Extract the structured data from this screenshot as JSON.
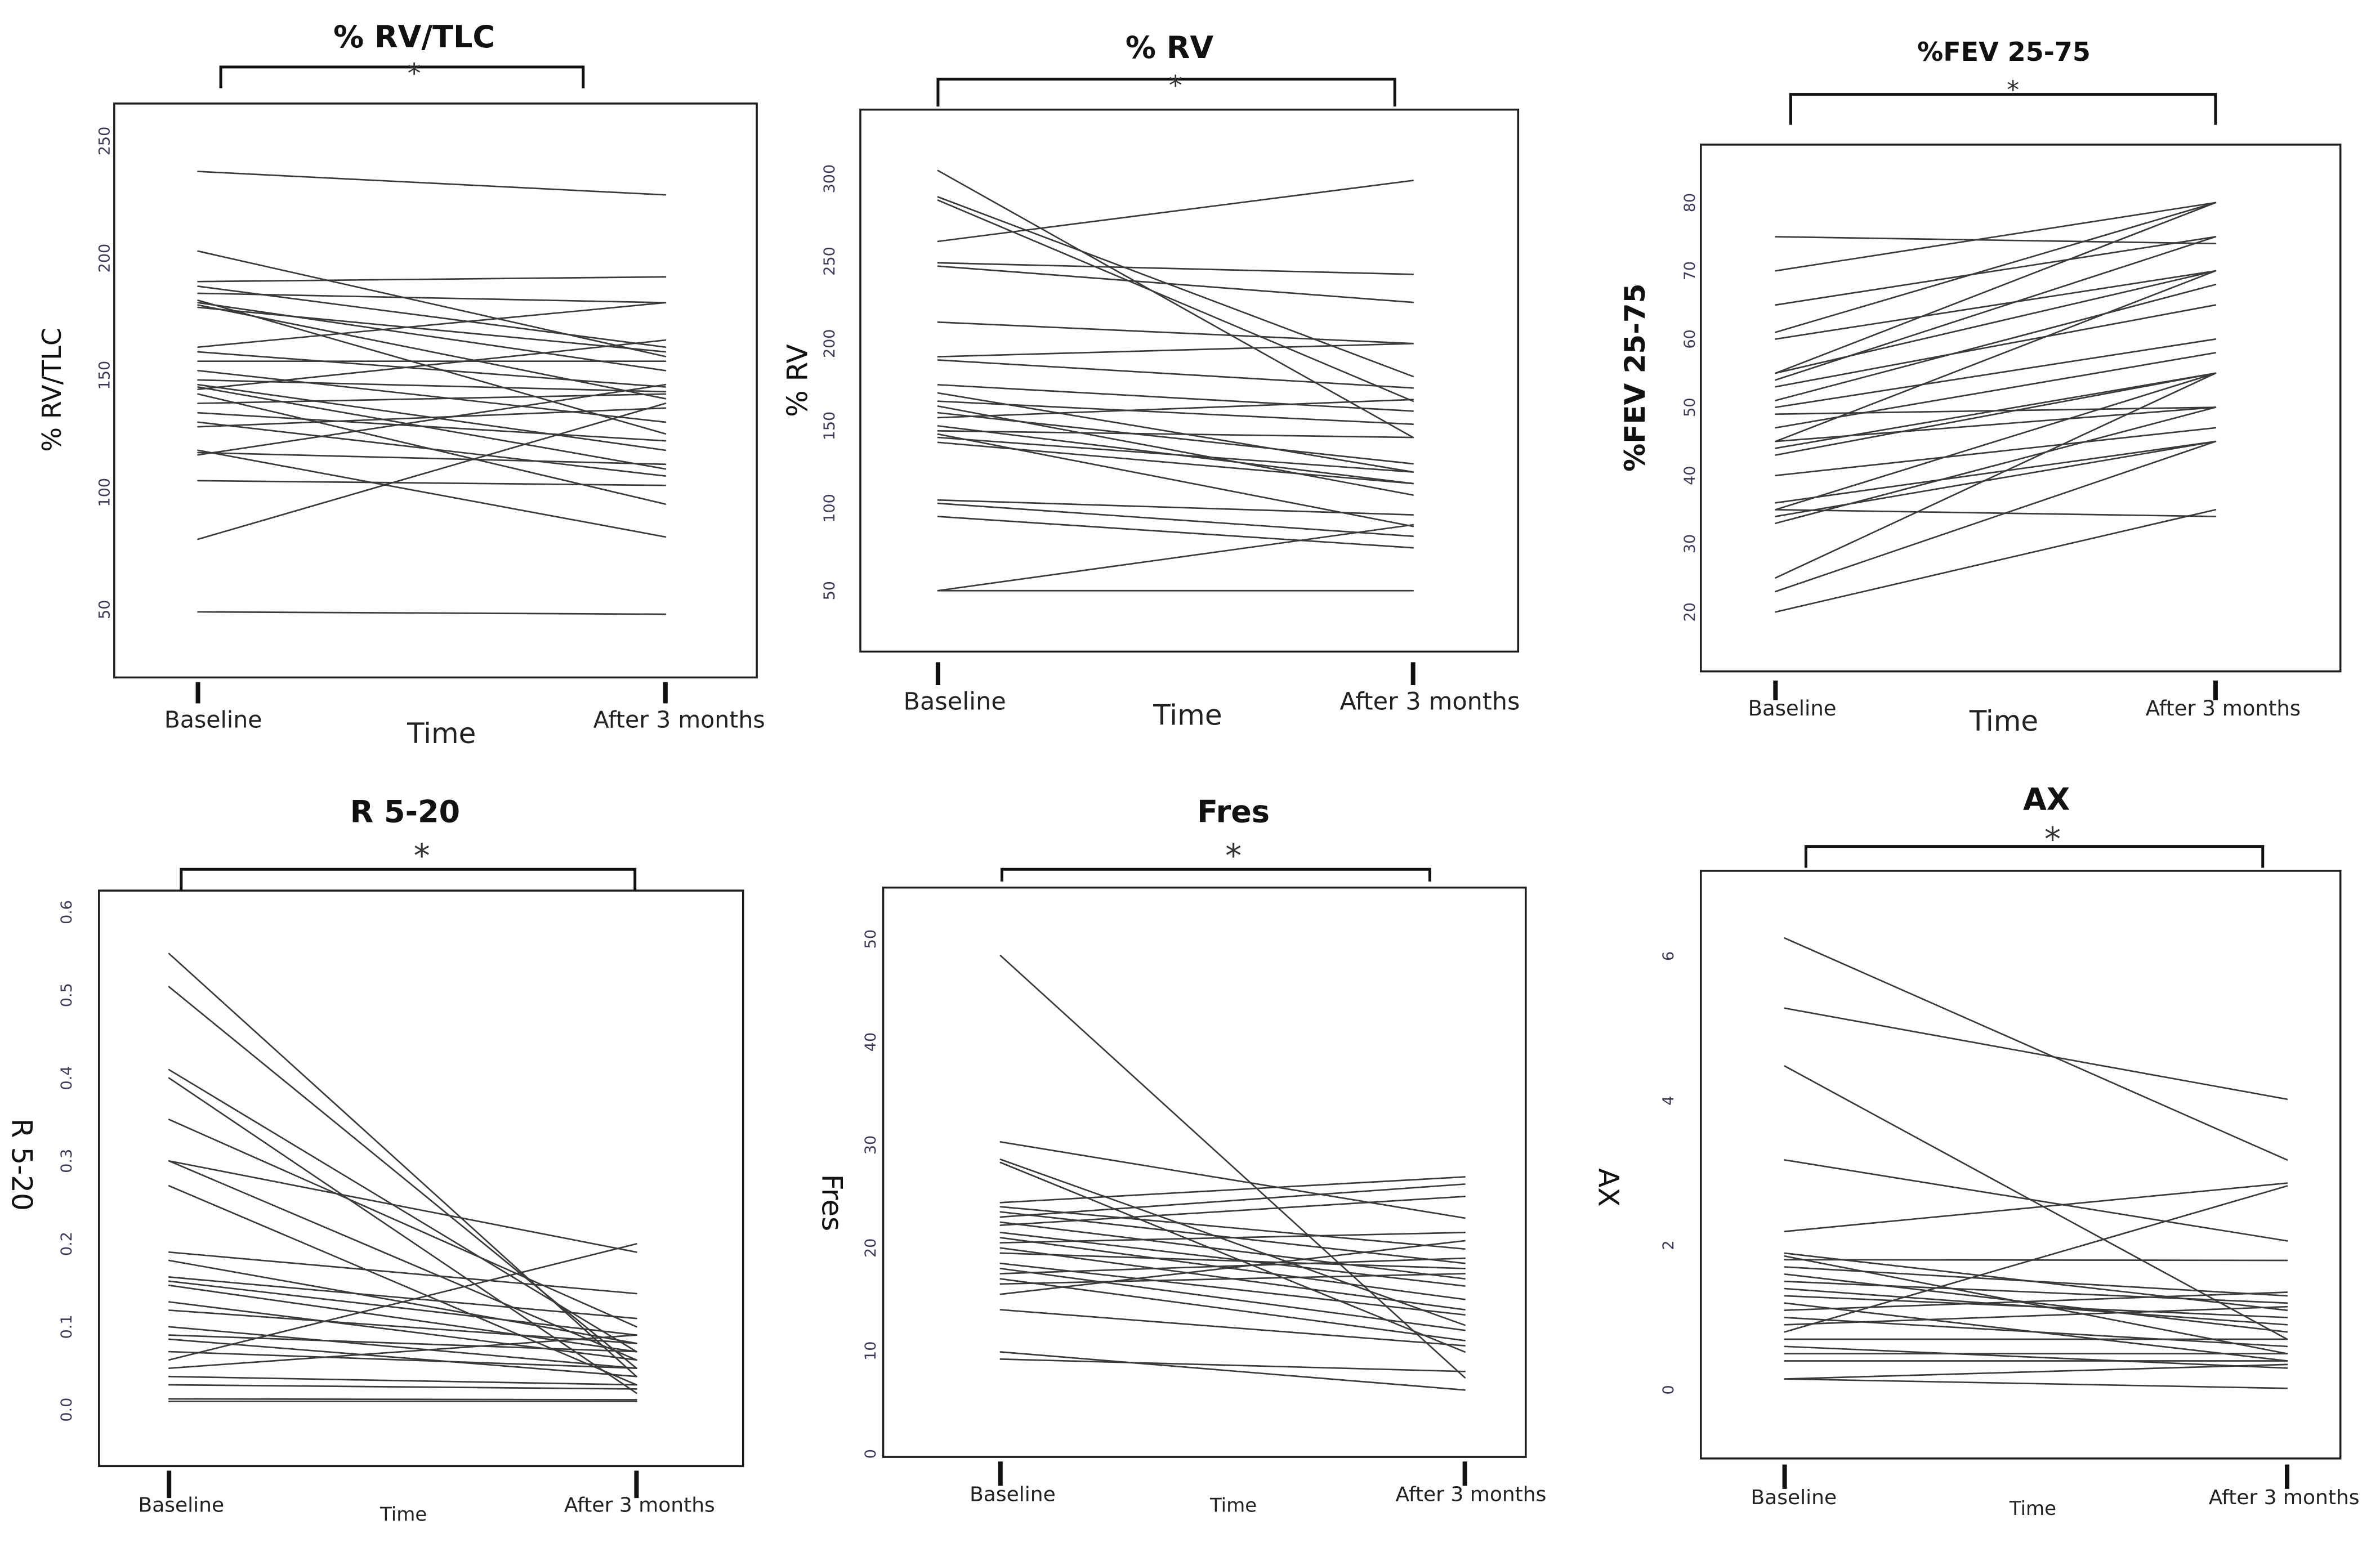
{
  "chart_data": [
    {
      "type": "line",
      "title": "% RV/TLC",
      "xlabel": "Time",
      "ylabel": "% RV/TLC",
      "categories": [
        "Baseline",
        "After 3 months"
      ],
      "yticks": [
        "50",
        "100",
        "150",
        "200",
        "250"
      ],
      "ylim": [
        21,
        266
      ],
      "significance": "*",
      "series": [
        {
          "values": [
            237,
            227
          ]
        },
        {
          "values": [
            203,
            158
          ]
        },
        {
          "values": [
            190,
            192
          ]
        },
        {
          "values": [
            188,
            162
          ]
        },
        {
          "values": [
            185,
            181
          ]
        },
        {
          "values": [
            182,
            125
          ]
        },
        {
          "values": [
            181,
            152
          ]
        },
        {
          "values": [
            180,
            140
          ]
        },
        {
          "values": [
            179,
            160
          ]
        },
        {
          "values": [
            162,
            181
          ]
        },
        {
          "values": [
            160,
            145
          ]
        },
        {
          "values": [
            156,
            156
          ]
        },
        {
          "values": [
            152,
            130
          ]
        },
        {
          "values": [
            148,
            143
          ]
        },
        {
          "values": [
            146,
            118
          ]
        },
        {
          "values": [
            145,
            110
          ]
        },
        {
          "values": [
            144,
            165
          ]
        },
        {
          "values": [
            142,
            95
          ]
        },
        {
          "values": [
            138,
            142
          ]
        },
        {
          "values": [
            134,
            122
          ]
        },
        {
          "values": [
            130,
            107
          ]
        },
        {
          "values": [
            128,
            136
          ]
        },
        {
          "values": [
            118,
            81
          ]
        },
        {
          "values": [
            117,
            112
          ]
        },
        {
          "values": [
            116,
            146
          ]
        },
        {
          "values": [
            105,
            103
          ]
        },
        {
          "values": [
            80,
            138
          ]
        },
        {
          "values": [
            49,
            48
          ]
        }
      ]
    },
    {
      "type": "line",
      "title": "% RV",
      "xlabel": "Time",
      "ylabel": "% RV",
      "categories": [
        "Baseline",
        "After 3 months"
      ],
      "yticks": [
        "50",
        "100",
        "150",
        "200",
        "250",
        "300"
      ],
      "ylim": [
        13,
        342
      ],
      "significance": "*",
      "series": [
        {
          "values": [
            305,
            143
          ]
        },
        {
          "values": [
            289,
            180
          ]
        },
        {
          "values": [
            287,
            165
          ]
        },
        {
          "values": [
            262,
            299
          ]
        },
        {
          "values": [
            249,
            242
          ]
        },
        {
          "values": [
            247,
            225
          ]
        },
        {
          "values": [
            213,
            200
          ]
        },
        {
          "values": [
            192,
            200
          ]
        },
        {
          "values": [
            190,
            173
          ]
        },
        {
          "values": [
            175,
            159
          ]
        },
        {
          "values": [
            170,
            122
          ]
        },
        {
          "values": [
            165,
            151
          ]
        },
        {
          "values": [
            162,
            108
          ]
        },
        {
          "values": [
            158,
            127
          ]
        },
        {
          "values": [
            155,
            166
          ]
        },
        {
          "values": [
            150,
            115
          ]
        },
        {
          "values": [
            147,
            143
          ]
        },
        {
          "values": [
            145,
            89
          ]
        },
        {
          "values": [
            143,
            122
          ]
        },
        {
          "values": [
            140,
            115
          ]
        },
        {
          "values": [
            105,
            96
          ]
        },
        {
          "values": [
            103,
            83
          ]
        },
        {
          "values": [
            95,
            76
          ]
        },
        {
          "values": [
            50,
            90
          ]
        },
        {
          "values": [
            50,
            50
          ]
        }
      ]
    },
    {
      "type": "line",
      "title": "%FEV 25-75",
      "xlabel": "Time",
      "ylabel": "%FEV 25-75",
      "categories": [
        "Baseline",
        "After 3 months"
      ],
      "yticks": [
        "20",
        "30",
        "40",
        "50",
        "60",
        "70",
        "80"
      ],
      "ylim": [
        11.3,
        88.5
      ],
      "significance": "*",
      "series": [
        {
          "values": [
            75,
            74
          ]
        },
        {
          "values": [
            70,
            80
          ]
        },
        {
          "values": [
            65,
            75
          ]
        },
        {
          "values": [
            61,
            80
          ]
        },
        {
          "values": [
            60,
            70
          ]
        },
        {
          "values": [
            55,
            80
          ]
        },
        {
          "values": [
            55,
            70
          ]
        },
        {
          "values": [
            54,
            75
          ]
        },
        {
          "values": [
            53,
            65
          ]
        },
        {
          "values": [
            51,
            68
          ]
        },
        {
          "values": [
            50,
            60
          ]
        },
        {
          "values": [
            49,
            50
          ]
        },
        {
          "values": [
            47,
            58
          ]
        },
        {
          "values": [
            45,
            50
          ]
        },
        {
          "values": [
            45,
            70
          ]
        },
        {
          "values": [
            44,
            55
          ]
        },
        {
          "values": [
            43,
            55
          ]
        },
        {
          "values": [
            40,
            47
          ]
        },
        {
          "values": [
            36,
            45
          ]
        },
        {
          "values": [
            35,
            55
          ]
        },
        {
          "values": [
            35,
            34
          ]
        },
        {
          "values": [
            34,
            45
          ]
        },
        {
          "values": [
            33,
            50
          ]
        },
        {
          "values": [
            25,
            55
          ]
        },
        {
          "values": [
            23,
            45
          ]
        },
        {
          "values": [
            20,
            35
          ]
        }
      ]
    },
    {
      "type": "line",
      "title": "R 5-20",
      "xlabel": "Time",
      "ylabel": "R 5-20",
      "categories": [
        "Baseline",
        "After 3 months"
      ],
      "yticks": [
        "0.0",
        "0.1",
        "0.2",
        "0.3",
        "0.4",
        "0.5",
        "0.6"
      ],
      "ylim": [
        -0.068,
        0.626
      ],
      "significance": "*",
      "series": [
        {
          "values": [
            0.55,
            0.04
          ]
        },
        {
          "values": [
            0.51,
            0.05
          ]
        },
        {
          "values": [
            0.41,
            0.07
          ]
        },
        {
          "values": [
            0.4,
            0.02
          ]
        },
        {
          "values": [
            0.35,
            0.1
          ]
        },
        {
          "values": [
            0.3,
            0.19
          ]
        },
        {
          "values": [
            0.3,
            0.06
          ]
        },
        {
          "values": [
            0.27,
            0.03
          ]
        },
        {
          "values": [
            0.19,
            0.14
          ]
        },
        {
          "values": [
            0.18,
            0.08
          ]
        },
        {
          "values": [
            0.16,
            0.11
          ]
        },
        {
          "values": [
            0.155,
            0.09
          ]
        },
        {
          "values": [
            0.15,
            0.07
          ]
        },
        {
          "values": [
            0.13,
            0.06
          ]
        },
        {
          "values": [
            0.12,
            0.08
          ]
        },
        {
          "values": [
            0.1,
            0.05
          ]
        },
        {
          "values": [
            0.09,
            0.07
          ]
        },
        {
          "values": [
            0.085,
            0.04
          ]
        },
        {
          "values": [
            0.07,
            0.05
          ]
        },
        {
          "values": [
            0.06,
            0.2
          ]
        },
        {
          "values": [
            0.05,
            0.09
          ]
        },
        {
          "values": [
            0.04,
            0.03
          ]
        },
        {
          "values": [
            0.03,
            0.025
          ]
        },
        {
          "values": [
            0.013,
            0.012
          ]
        },
        {
          "values": [
            0.01,
            0.01
          ]
        }
      ]
    },
    {
      "type": "line",
      "title": "Fres",
      "xlabel": "Time",
      "ylabel": "Fres",
      "categories": [
        "Baseline",
        "After 3 months"
      ],
      "yticks": [
        "0",
        "10",
        "20",
        "30",
        "40",
        "50"
      ],
      "ylim": [
        -0.3,
        55
      ],
      "significance": "*",
      "series": [
        {
          "values": [
            48.4,
            7.4
          ]
        },
        {
          "values": [
            30.3,
            22.9
          ]
        },
        {
          "values": [
            28.6,
            12.5
          ]
        },
        {
          "values": [
            28.3,
            9.9
          ]
        },
        {
          "values": [
            24.4,
            26.9
          ]
        },
        {
          "values": [
            24.0,
            19.9
          ]
        },
        {
          "values": [
            23.5,
            18.5
          ]
        },
        {
          "values": [
            23.0,
            26.2
          ]
        },
        {
          "values": [
            22.5,
            17.0
          ]
        },
        {
          "values": [
            22.2,
            25.0
          ]
        },
        {
          "values": [
            21.5,
            16.3
          ]
        },
        {
          "values": [
            21.0,
            15.0
          ]
        },
        {
          "values": [
            20.5,
            21.5
          ]
        },
        {
          "values": [
            20.0,
            14.0
          ]
        },
        {
          "values": [
            19.5,
            18.0
          ]
        },
        {
          "values": [
            18.5,
            13.5
          ]
        },
        {
          "values": [
            18.0,
            12.0
          ]
        },
        {
          "values": [
            17.5,
            19.0
          ]
        },
        {
          "values": [
            17.0,
            11.0
          ]
        },
        {
          "values": [
            16.5,
            17.5
          ]
        },
        {
          "values": [
            15.5,
            20.7
          ]
        },
        {
          "values": [
            14.0,
            10.5
          ]
        },
        {
          "values": [
            9.9,
            6.2
          ]
        },
        {
          "values": [
            9.2,
            8.0
          ]
        }
      ]
    },
    {
      "type": "line",
      "title": "AX",
      "xlabel": "Time",
      "ylabel": "AX",
      "categories": [
        "Baseline",
        "After 3 months"
      ],
      "yticks": [
        "0",
        "2",
        "4",
        "6"
      ],
      "ylim": [
        -0.95,
        7.18
      ],
      "significance": "*",
      "series": [
        {
          "values": [
            6.25,
            3.18
          ]
        },
        {
          "values": [
            5.28,
            4.02
          ]
        },
        {
          "values": [
            4.48,
            0.7
          ]
        },
        {
          "values": [
            3.18,
            2.06
          ]
        },
        {
          "values": [
            2.19,
            2.86
          ]
        },
        {
          "values": [
            1.89,
            1.1
          ]
        },
        {
          "values": [
            1.85,
            0.5
          ]
        },
        {
          "values": [
            1.8,
            1.79
          ]
        },
        {
          "values": [
            1.7,
            1.3
          ]
        },
        {
          "values": [
            1.6,
            0.8
          ]
        },
        {
          "values": [
            1.5,
            1.2
          ]
        },
        {
          "values": [
            1.4,
            0.9
          ]
        },
        {
          "values": [
            1.3,
            1.0
          ]
        },
        {
          "values": [
            1.2,
            0.4
          ]
        },
        {
          "values": [
            1.1,
            1.35
          ]
        },
        {
          "values": [
            1.0,
            0.6
          ]
        },
        {
          "values": [
            0.9,
            1.15
          ]
        },
        {
          "values": [
            0.8,
            2.82
          ]
        },
        {
          "values": [
            0.7,
            0.7
          ]
        },
        {
          "values": [
            0.6,
            0.3
          ]
        },
        {
          "values": [
            0.5,
            0.5
          ]
        },
        {
          "values": [
            0.4,
            0.4
          ]
        },
        {
          "values": [
            0.15,
            0.02
          ]
        },
        {
          "values": [
            0.15,
            0.35
          ]
        }
      ]
    }
  ]
}
